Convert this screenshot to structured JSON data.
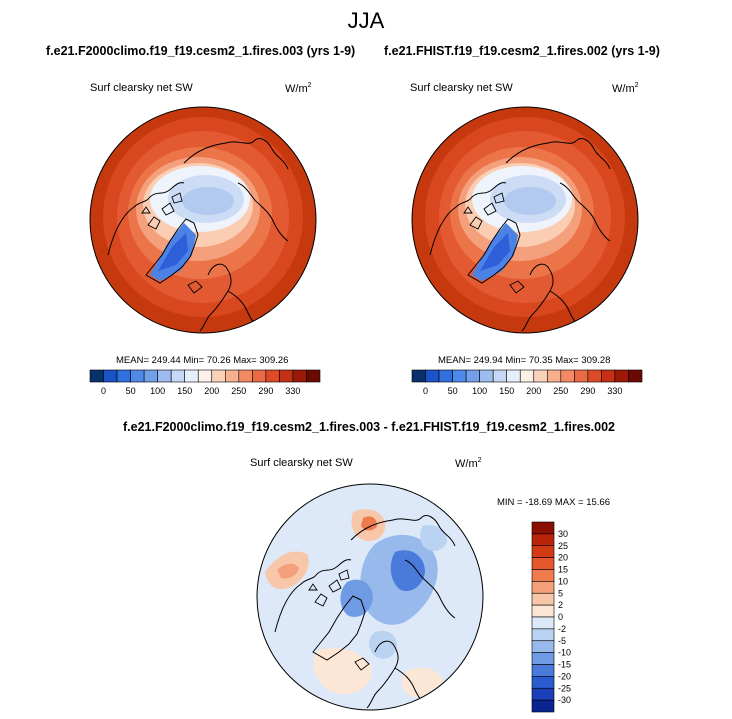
{
  "season": "JJA",
  "panels": [
    {
      "case_title": "f.e21.F2000climo.f19_f19.cesm2_1.fires.003 (yrs 1-9)",
      "variable": "Surf clearsky net SW",
      "units_base": "W/m",
      "units_exp": "2",
      "stats": "MEAN= 249.44  Min=  70.26  Max= 309.26"
    },
    {
      "case_title": "f.e21.FHIST.f19_f19.cesm2_1.fires.002 (yrs 1-9)",
      "variable": "Surf clearsky net SW",
      "units_base": "W/m",
      "units_exp": "2",
      "stats": "MEAN= 249.94  Min=  70.35  Max= 309.28"
    }
  ],
  "diff_panel": {
    "title": "f.e21.F2000climo.f19_f19.cesm2_1.fires.003 - f.e21.FHIST.f19_f19.cesm2_1.fires.002",
    "variable": "Surf clearsky net SW",
    "units_base": "W/m",
    "units_exp": "2",
    "stats": "MIN = -18.69 MAX =  15.66"
  },
  "chart_data": [
    {
      "type": "heatmap",
      "projection": "north-polar-stereographic",
      "title": "f.e21.F2000climo.f19_f19.cesm2_1.fires.003 (yrs 1-9)",
      "variable": "Surf clearsky net SW",
      "units": "W/m2",
      "mean": 249.44,
      "min": 70.26,
      "max": 309.26,
      "colorbar": {
        "orientation": "horizontal",
        "levels": [
          0,
          50,
          100,
          150,
          200,
          250,
          290,
          330
        ],
        "colors": [
          "#08306b",
          "#1a53c8",
          "#2f6fe0",
          "#4f8ae8",
          "#739fe8",
          "#9cbcee",
          "#c5d8f6",
          "#e6eefb",
          "#fdf0e6",
          "#fbd2ba",
          "#f7b08f",
          "#f28b65",
          "#ea6a43",
          "#de4a26",
          "#c52f14",
          "#9e1a08",
          "#6b0a02"
        ]
      }
    },
    {
      "type": "heatmap",
      "projection": "north-polar-stereographic",
      "title": "f.e21.FHIST.f19_f19.cesm2_1.fires.002 (yrs 1-9)",
      "variable": "Surf clearsky net SW",
      "units": "W/m2",
      "mean": 249.94,
      "min": 70.35,
      "max": 309.28,
      "colorbar": {
        "orientation": "horizontal",
        "levels": [
          0,
          50,
          100,
          150,
          200,
          250,
          290,
          330
        ],
        "colors": [
          "#08306b",
          "#1a53c8",
          "#2f6fe0",
          "#4f8ae8",
          "#739fe8",
          "#9cbcee",
          "#c5d8f6",
          "#e6eefb",
          "#fdf0e6",
          "#fbd2ba",
          "#f7b08f",
          "#f28b65",
          "#ea6a43",
          "#de4a26",
          "#c52f14",
          "#9e1a08",
          "#6b0a02"
        ]
      }
    },
    {
      "type": "heatmap",
      "projection": "north-polar-stereographic",
      "title": "f.e21.F2000climo.f19_f19.cesm2_1.fires.003 - f.e21.FHIST.f19_f19.cesm2_1.fires.002",
      "variable": "Surf clearsky net SW",
      "units": "W/m2",
      "min": -18.69,
      "max": 15.66,
      "colorbar": {
        "orientation": "vertical",
        "levels": [
          30,
          25,
          20,
          15,
          10,
          5,
          2,
          0,
          -2,
          -5,
          -10,
          -15,
          -20,
          -25,
          -30
        ],
        "colors": [
          "#8b0f03",
          "#b8230a",
          "#d23a14",
          "#e5572c",
          "#ef7a4c",
          "#f4a07a",
          "#f8c7aa",
          "#fce6d6",
          "#dde9f8",
          "#bad3f2",
          "#97b9ec",
          "#6f9be4",
          "#4a7bdb",
          "#2b5bcf",
          "#1a3fb8",
          "#0b2491"
        ]
      }
    }
  ]
}
